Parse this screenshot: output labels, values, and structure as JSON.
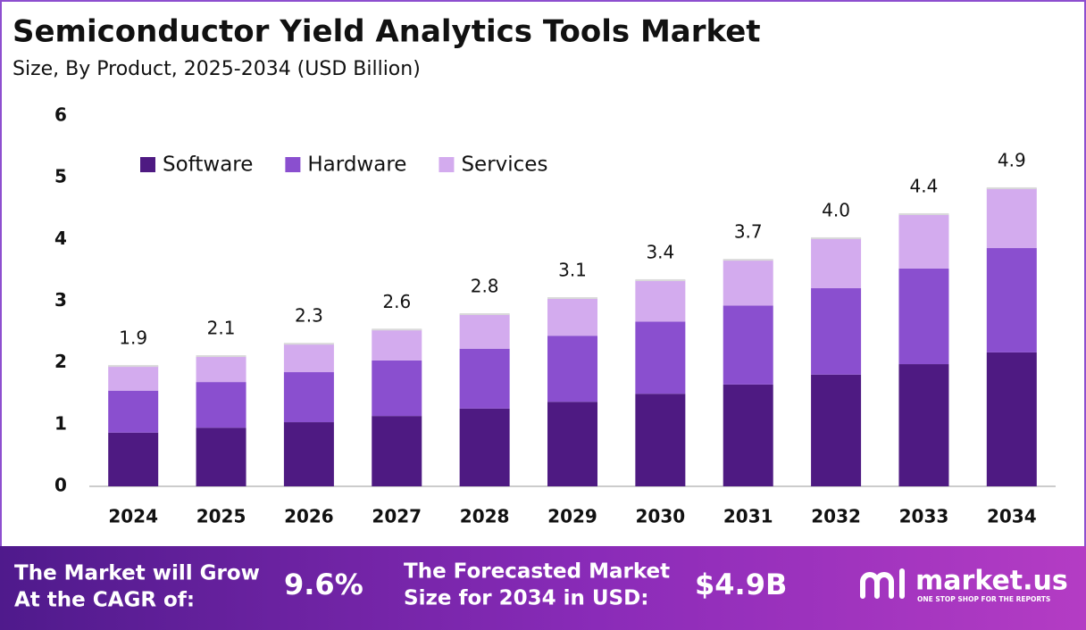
{
  "chart_data": {
    "type": "stacked-bar",
    "title": "Semiconductor Yield Analytics Tools Market",
    "subtitle": "Size, By Product, 2025-2034 (USD Billion)",
    "categories": [
      "2024",
      "2025",
      "2026",
      "2027",
      "2028",
      "2029",
      "2030",
      "2031",
      "2032",
      "2033",
      "2034"
    ],
    "series": [
      {
        "name": "Software",
        "color": "#4e1a82",
        "values": [
          0.87,
          0.95,
          1.04,
          1.14,
          1.26,
          1.37,
          1.5,
          1.65,
          1.81,
          1.98,
          2.17
        ]
      },
      {
        "name": "Hardware",
        "color": "#8a4fcf",
        "values": [
          0.68,
          0.74,
          0.81,
          0.9,
          0.97,
          1.07,
          1.17,
          1.28,
          1.4,
          1.55,
          1.69
        ]
      },
      {
        "name": "Services",
        "color": "#d3abee",
        "values": [
          0.4,
          0.42,
          0.46,
          0.5,
          0.56,
          0.61,
          0.67,
          0.74,
          0.81,
          0.88,
          0.97
        ]
      }
    ],
    "totals": {
      "values": [
        1.9,
        2.1,
        2.3,
        2.6,
        2.8,
        3.1,
        3.4,
        3.7,
        4.0,
        4.4,
        4.9
      ],
      "value_labels": [
        "1.9",
        "2.1",
        "2.3",
        "2.6",
        "2.8",
        "3.1",
        "3.4",
        "3.7",
        "4.0",
        "4.4",
        "4.9"
      ]
    },
    "ylim": [
      0,
      6
    ],
    "yticks": [
      0,
      1,
      2,
      3,
      4,
      5,
      6
    ],
    "grid": false,
    "legend": "top-left"
  },
  "footer": {
    "cagr_label": [
      "The Market will Grow",
      "At the CAGR of:"
    ],
    "cagr_value": "9.6%",
    "forecast_label": [
      "The Forecasted Market",
      "Size for 2034 in USD:"
    ],
    "forecast_value": "$4.9B",
    "logo": "market.us",
    "tagline": "ONE STOP SHOP FOR THE REPORTS"
  }
}
